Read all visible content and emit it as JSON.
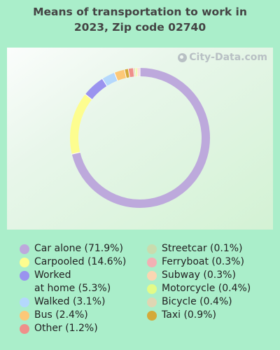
{
  "title_line1": "Means of transportation to work in",
  "title_line2": "2023, Zip code 02740",
  "watermark": "City-Data.com",
  "chart_data": {
    "type": "pie",
    "style": "donut",
    "title": "Means of transportation to work in 2023, Zip code 02740",
    "legend_placement": "bottom",
    "slices": [
      {
        "label": "Car alone (71.9%)",
        "name": "Car alone",
        "value": 71.9,
        "color": "#bda9dc"
      },
      {
        "label": "Carpooled (14.6%)",
        "name": "Carpooled",
        "value": 14.6,
        "color": "#fdfd8f"
      },
      {
        "label": "Worked at home (5.3%)",
        "name": "Worked at home",
        "value": 5.3,
        "color": "#9a93ef"
      },
      {
        "label": "Walked (3.1%)",
        "name": "Walked",
        "value": 3.1,
        "color": "#b4d8fc"
      },
      {
        "label": "Bus (2.4%)",
        "name": "Bus",
        "value": 2.4,
        "color": "#fcc878"
      },
      {
        "label": "Taxi (0.9%)",
        "name": "Taxi",
        "value": 0.9,
        "color": "#d4aa3a"
      },
      {
        "label": "Other (1.2%)",
        "name": "Other",
        "value": 1.2,
        "color": "#ef8f8a"
      },
      {
        "label": "Bicycle (0.4%)",
        "name": "Bicycle",
        "value": 0.4,
        "color": "#e0d6b3"
      },
      {
        "label": "Motorcycle (0.4%)",
        "name": "Motorcycle",
        "value": 0.4,
        "color": "#e3fb88"
      },
      {
        "label": "Subway (0.3%)",
        "name": "Subway",
        "value": 0.3,
        "color": "#fad6b2"
      },
      {
        "label": "Ferryboat (0.3%)",
        "name": "Ferryboat",
        "value": 0.3,
        "color": "#f2b0b4"
      },
      {
        "label": "Streetcar (0.1%)",
        "name": "Streetcar",
        "value": 0.1,
        "color": "#c9dcae"
      }
    ]
  },
  "legend": {
    "left": [
      {
        "line1": "Car alone (71.9%)",
        "line2": "",
        "color": "#bda9dc"
      },
      {
        "line1": "Carpooled (14.6%)",
        "line2": "",
        "color": "#fdfd8f"
      },
      {
        "line1": "Worked",
        "line2": "at home (5.3%)",
        "color": "#9a93ef"
      },
      {
        "line1": "Walked (3.1%)",
        "line2": "",
        "color": "#b4d8fc"
      },
      {
        "line1": "Bus (2.4%)",
        "line2": "",
        "color": "#fcc878"
      },
      {
        "line1": "Other (1.2%)",
        "line2": "",
        "color": "#ef8f8a"
      }
    ],
    "right": [
      {
        "line1": "Streetcar (0.1%)",
        "line2": "",
        "color": "#c9dcae"
      },
      {
        "line1": "Ferryboat (0.3%)",
        "line2": "",
        "color": "#f2b0b4"
      },
      {
        "line1": "Subway (0.3%)",
        "line2": "",
        "color": "#fad6b2"
      },
      {
        "line1": "Motorcycle (0.4%)",
        "line2": "",
        "color": "#e3fb88"
      },
      {
        "line1": "Bicycle (0.4%)",
        "line2": "",
        "color": "#e0d6b3"
      },
      {
        "line1": "Taxi (0.9%)",
        "line2": "",
        "color": "#d4aa3a"
      }
    ]
  }
}
